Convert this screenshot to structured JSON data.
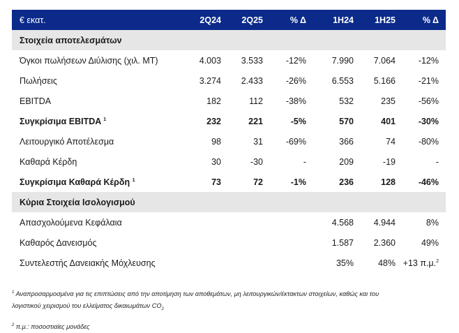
{
  "header": {
    "unit": "€ εκατ.",
    "cols": [
      "2Q24",
      "2Q25",
      "% Δ",
      "1H24",
      "1H25",
      "% Δ"
    ]
  },
  "section1": {
    "title": "Στοιχεία αποτελεσμάτων"
  },
  "rows1": [
    {
      "label": "Όγκοι πωλήσεων Διύλισης (χιλ. MT)",
      "sup": "",
      "bold": false,
      "v": [
        "4.003",
        "3.533",
        "-12%",
        "7.990",
        "7.064",
        "-12%"
      ]
    },
    {
      "label": "Πωλήσεις",
      "sup": "",
      "bold": false,
      "v": [
        "3.274",
        "2.433",
        "-26%",
        "6.553",
        "5.166",
        "-21%"
      ]
    },
    {
      "label": "EBITDA",
      "sup": "",
      "bold": false,
      "v": [
        "182",
        "112",
        "-38%",
        "532",
        "235",
        "-56%"
      ]
    },
    {
      "label": "Συγκρίσιμα EBITDA",
      "sup": "1",
      "bold": true,
      "v": [
        "232",
        "221",
        "-5%",
        "570",
        "401",
        "-30%"
      ]
    },
    {
      "label": "Λειτουργικό Αποτέλεσμα",
      "sup": "",
      "bold": false,
      "v": [
        "98",
        "31",
        "-69%",
        "366",
        "74",
        "-80%"
      ]
    },
    {
      "label": "Καθαρά Κέρδη",
      "sup": "",
      "bold": false,
      "v": [
        "30",
        "-30",
        "-",
        "209",
        "-19",
        "-"
      ]
    },
    {
      "label": "Συγκρίσιμα Καθαρά Κέρδη",
      "sup": "1",
      "bold": true,
      "v": [
        "73",
        "72",
        "-1%",
        "236",
        "128",
        "-46%"
      ]
    }
  ],
  "section2": {
    "title": "Κύρια Στοιχεία Ισολογισμού"
  },
  "rows2": [
    {
      "label": "Απασχολούμενα Κεφάλαια",
      "v": [
        "4.568",
        "4.944",
        "8%"
      ],
      "sup": ""
    },
    {
      "label": "Καθαρός Δανεισμός",
      "v": [
        "1.587",
        "2.360",
        "49%"
      ],
      "sup": ""
    },
    {
      "label": "Συντελεστής Δανειακής Μόχλευσης",
      "v": [
        "35%",
        "48%",
        "+13 π.μ."
      ],
      "sup": "2"
    }
  ],
  "footnotes": {
    "f1_mark": "1",
    "f1_line1": "Αναπροσαρμοσμένα για τις επιπτώσεις από την αποτίμηση των αποθεμάτων, μη λειτουργικών/έκτακτων στοιχείων, καθώς και του",
    "f1_line2": "λογιστικού χειρισμού του ελλείματος δικαιωμάτων CO",
    "f1_sub": "2",
    "f2_mark": "2",
    "f2_text": "π.μ.: ποσοστιαίες μονάδες"
  }
}
